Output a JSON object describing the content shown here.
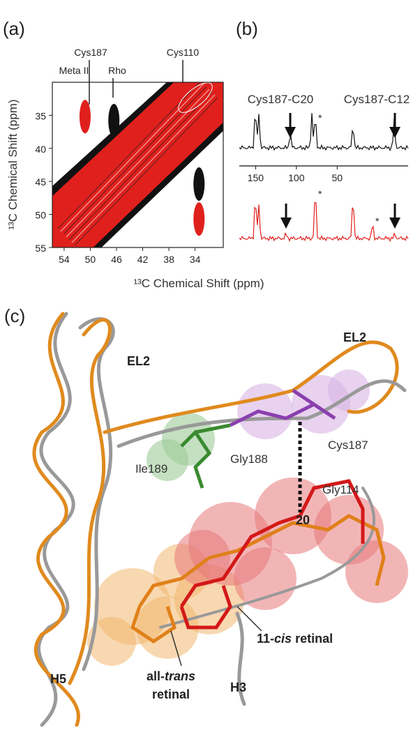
{
  "panel_a": {
    "label": "(a)",
    "annotations": [
      "Meta II",
      "Cys187",
      "Rho",
      "Cys110"
    ],
    "xlabel": "¹³C Chemical Shift (ppm)",
    "ylabel": "¹³C Chemical Shift (ppm)",
    "xlim": [
      55.8,
      29.7
    ],
    "ylim": [
      30,
      55
    ],
    "xticks": [
      54,
      50,
      46,
      42,
      38,
      34
    ],
    "yticks": [
      35,
      40,
      45,
      50,
      55
    ],
    "peaks": [
      {
        "color": "#e0201c",
        "x": 50.8,
        "y": 35.2
      },
      {
        "color": "#111111",
        "x": 46.4,
        "y": 35.8
      },
      {
        "color": "#111111",
        "x": 33.4,
        "y": 45.4
      },
      {
        "color": "#e0201c",
        "x": 33.4,
        "y": 50.7
      }
    ]
  },
  "panel_b": {
    "label": "(b)",
    "annotations": [
      "Cys187-C20",
      "Cys187-C12"
    ],
    "asterisks": [
      "*",
      "*",
      "*"
    ],
    "xlim": [
      170,
      -37
    ],
    "xticks": [
      150,
      100,
      50
    ]
  },
  "panel_c": {
    "label": "(c)",
    "labels": {
      "el2_left": "EL2",
      "el2_right": "EL2",
      "cys187": "Cys187",
      "gly188": "Gly188",
      "ile189": "Ile189",
      "gly114": "Gly114",
      "c20": "20",
      "h5": "H5",
      "h3": "H3"
    },
    "cis_retinal": {
      "prefix": "11-",
      "italic": "cis",
      "suffix": " retinal"
    },
    "trans_retinal": {
      "prefix": "all-",
      "italic": "trans",
      "line2": "retinal"
    }
  }
}
